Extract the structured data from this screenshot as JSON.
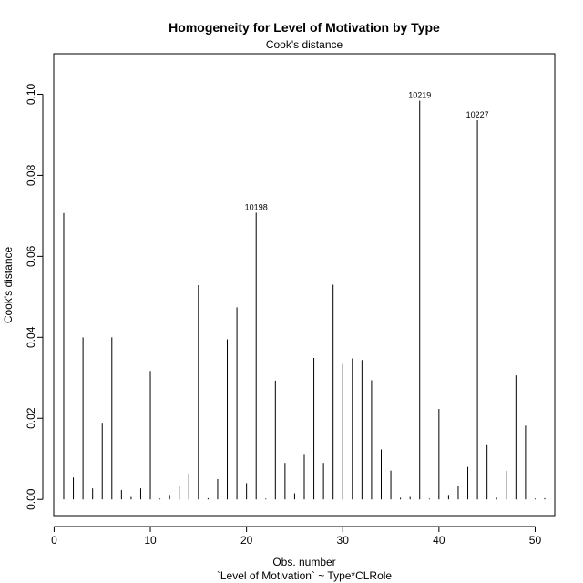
{
  "chart_data": {
    "type": "bar",
    "title": "Homogeneity for Level of Motivation by Type",
    "subtitle": "Cook's distance",
    "xlabel": "Obs. number",
    "xlabel2": "`Level of Motivation` ~ Type*CLRole",
    "ylabel": "Cook's distance",
    "xlim": [
      -0.04,
      52.04
    ],
    "ylim": [
      -0.004,
      0.11
    ],
    "xticks": [
      0,
      10,
      20,
      30,
      40,
      50
    ],
    "yticks": [
      0.0,
      0.02,
      0.04,
      0.06,
      0.08,
      0.1
    ],
    "ytick_labels": [
      "0.00",
      "0.02",
      "0.04",
      "0.06",
      "0.08",
      "0.10"
    ],
    "grid": false,
    "x": [
      1,
      2,
      3,
      4,
      5,
      6,
      7,
      8,
      9,
      10,
      11,
      12,
      13,
      14,
      15,
      16,
      17,
      18,
      19,
      20,
      21,
      22,
      23,
      24,
      25,
      26,
      27,
      28,
      29,
      30,
      31,
      32,
      33,
      34,
      35,
      36,
      37,
      38,
      39,
      40,
      41,
      42,
      43,
      44,
      45,
      46,
      47,
      48,
      49,
      50,
      51
    ],
    "values": [
      0.0707,
      0.0054,
      0.04,
      0.0027,
      0.0189,
      0.04,
      0.0023,
      0.0006,
      0.0027,
      0.0317,
      0.0002,
      0.0011,
      0.0032,
      0.0064,
      0.0529,
      0.0003,
      0.005,
      0.0395,
      0.0474,
      0.004,
      0.0708,
      0.0002,
      0.0293,
      0.009,
      0.0015,
      0.0112,
      0.0349,
      0.009,
      0.053,
      0.0334,
      0.0348,
      0.0344,
      0.0294,
      0.0123,
      0.0071,
      0.0004,
      0.0006,
      0.0984,
      0.0002,
      0.0223,
      0.0011,
      0.0033,
      0.008,
      0.0936,
      0.0136,
      0.0004,
      0.007,
      0.0306,
      0.0182,
      0.0002,
      0.0003
    ],
    "annotations": [
      {
        "x": 21,
        "y": 0.0708,
        "label": "10198"
      },
      {
        "x": 38,
        "y": 0.0984,
        "label": "10219"
      },
      {
        "x": 44,
        "y": 0.0936,
        "label": "10227"
      }
    ]
  }
}
